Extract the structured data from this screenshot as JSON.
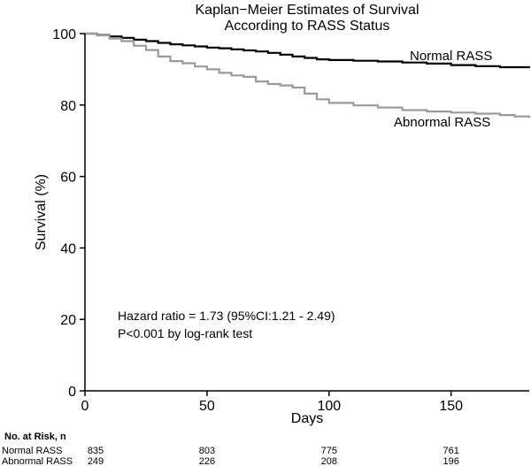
{
  "chart_data": {
    "type": "line",
    "title_lines": [
      "Kaplan−Meier Estimates of Survival",
      "According to RASS Status"
    ],
    "xlabel": "Days",
    "ylabel": "Survival (%)",
    "xlim": [
      0,
      182
    ],
    "ylim": [
      0,
      100
    ],
    "x_ticks": [
      "0",
      "50",
      "100",
      "150"
    ],
    "y_ticks": [
      "0",
      "20",
      "40",
      "60",
      "80",
      "100"
    ],
    "grid": false,
    "series": [
      {
        "name": "Normal RASS",
        "color": "#000000",
        "x": [
          0,
          5,
          10,
          15,
          20,
          25,
          30,
          35,
          40,
          45,
          50,
          55,
          60,
          65,
          70,
          75,
          80,
          85,
          90,
          95,
          100,
          110,
          120,
          130,
          140,
          150,
          160,
          170,
          182
        ],
        "y": [
          100,
          99.6,
          99.2,
          98.8,
          98.3,
          97.9,
          97.4,
          97.0,
          96.7,
          96.4,
          96.1,
          95.9,
          95.6,
          95.3,
          95.0,
          94.6,
          94.1,
          93.6,
          93.2,
          92.8,
          92.6,
          92.4,
          92.2,
          91.9,
          91.6,
          91.2,
          90.9,
          90.6,
          90.4
        ]
      },
      {
        "name": "Abnormal RASS",
        "color": "#9a9a9a",
        "x": [
          0,
          5,
          10,
          15,
          20,
          25,
          30,
          35,
          40,
          45,
          50,
          55,
          60,
          65,
          70,
          75,
          80,
          85,
          90,
          95,
          100,
          110,
          120,
          130,
          140,
          150,
          160,
          170,
          176,
          182
        ],
        "y": [
          100,
          99.5,
          98.6,
          97.9,
          96.6,
          95.4,
          93.6,
          92.3,
          91.7,
          90.8,
          90.0,
          89.0,
          88.3,
          87.9,
          86.6,
          85.9,
          85.5,
          84.9,
          83.2,
          81.6,
          80.6,
          79.9,
          79.3,
          78.6,
          78.2,
          77.9,
          77.6,
          77.2,
          76.8,
          76.4
        ]
      }
    ],
    "annotation_lines": [
      "Hazard ratio = 1.73 (95%CI:1.21 - 2.49)",
      "P<0.001 by log-rank test"
    ]
  },
  "risk_table": {
    "header": "No. at Risk, n",
    "rows": [
      {
        "label": "Normal RASS",
        "values": [
          "835",
          "803",
          "775",
          "761"
        ]
      },
      {
        "label": "Abnormal RASS",
        "values": [
          "249",
          "226",
          "208",
          "196"
        ]
      }
    ]
  }
}
